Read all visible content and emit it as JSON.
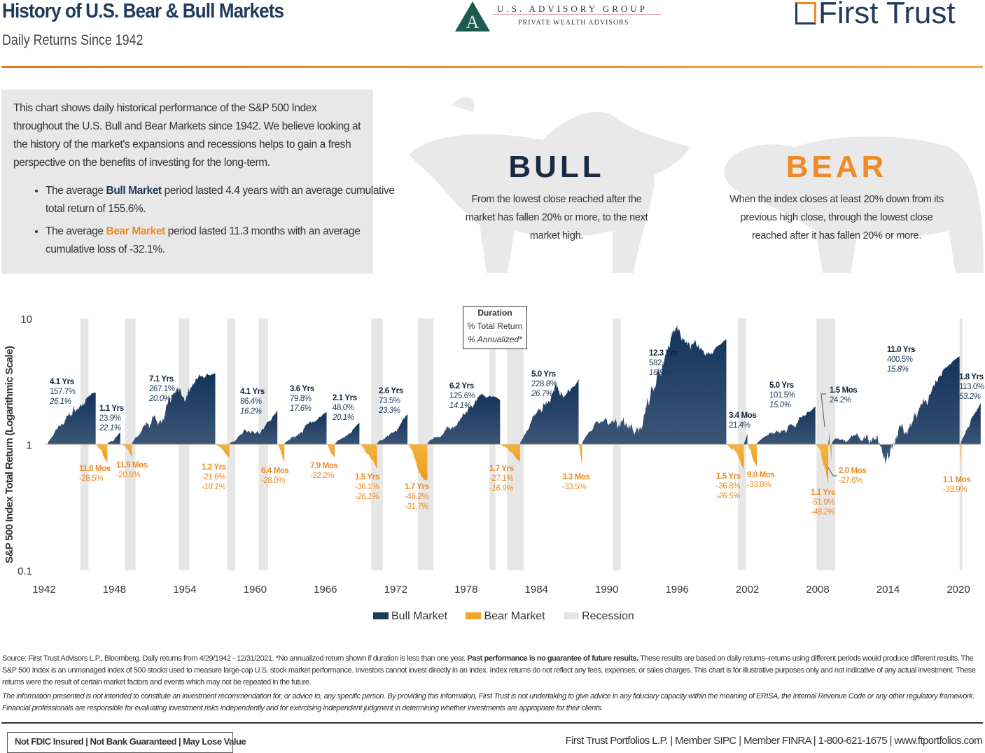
{
  "header": {
    "title": "History of U.S. Bear & Bull Markets",
    "subtitle": "Daily Returns Since 1942",
    "partner_logo": {
      "line1": "U.S. ADVISORY GROUP",
      "line2": "PRIVATE WEALTH ADVISORS",
      "monogram": "AG"
    },
    "brand_logo": "First Trust",
    "accent_color": "#f08a24",
    "navy_color": "#1f3a5c"
  },
  "intro": {
    "paragraph": "This chart shows daily historical performance of the S&P 500 Index throughout the U.S. Bull and Bear Markets since 1942. We believe looking at the history of the market's expansions and recessions helps to gain a fresh perspective on the benefits of investing for the long-term.",
    "bullet1": {
      "pre": "The average ",
      "em": "Bull Market",
      "post": " period lasted 4.4 years with an average cumulative total return of 155.6%."
    },
    "bullet2": {
      "pre": "The average ",
      "em": "Bear Market",
      "post": " period lasted 11.3 months with an average cumulative loss of -32.1%."
    }
  },
  "bull_panel": {
    "heading": "BULL",
    "description": "From the lowest close reached after the market has fallen 20% or more, to the next market high."
  },
  "bear_panel": {
    "heading": "BEAR",
    "description": "When the index closes at least 20% down from its previous high close, through the lowest close reached after it has fallen 20% or more."
  },
  "key_box": {
    "line1": "Duration",
    "line2": "% Total Return",
    "line3": "% Annualized*"
  },
  "chart_data": {
    "type": "area",
    "ylabel": "S&P 500 Index Total Return (Logarithmic Scale)",
    "yscale": "log",
    "ylim": [
      0.1,
      10
    ],
    "yticks": [
      "10",
      "1",
      "0.1"
    ],
    "xlim": [
      1942,
      2022
    ],
    "xticks": [
      "1942",
      "1948",
      "1954",
      "1960",
      "1966",
      "1972",
      "1978",
      "1984",
      "1990",
      "1996",
      "2002",
      "2008",
      "2014",
      "2020"
    ],
    "colors": {
      "bull": "#1f3a5c",
      "bear": "#f2a52e",
      "recession": "#e6e6e6",
      "bear_label": "#f08a24"
    },
    "legend": [
      {
        "name": "Bull Market",
        "color": "#1f3a5c"
      },
      {
        "name": "Bear Market",
        "color": "#f2a52e"
      },
      {
        "name": "Recession",
        "color": "#e6e6e6"
      }
    ],
    "recessions": [
      [
        1945.1,
        1945.8
      ],
      [
        1948.9,
        1949.8
      ],
      [
        1953.5,
        1954.4
      ],
      [
        1957.6,
        1958.3
      ],
      [
        1960.3,
        1961.1
      ],
      [
        1969.9,
        1970.9
      ],
      [
        1973.9,
        1975.2
      ],
      [
        1980.0,
        1980.5
      ],
      [
        1981.5,
        1982.9
      ],
      [
        1990.5,
        1991.2
      ],
      [
        2001.2,
        2001.9
      ],
      [
        2007.9,
        2009.5
      ],
      [
        2020.1,
        2020.3
      ]
    ],
    "segments": [
      {
        "type": "bull",
        "start": 1942.3,
        "end": 1946.4,
        "end_value": 2.577,
        "duration": "4.1 Yrs",
        "total": "157.7%",
        "annualized": "26.1%"
      },
      {
        "type": "bear",
        "start": 1946.4,
        "end": 1947.4,
        "end_value": 0.715,
        "duration": "11.6 Mos",
        "total": "-28.5%",
        "annualized": ""
      },
      {
        "type": "bull",
        "start": 1947.4,
        "end": 1948.5,
        "end_value": 1.239,
        "duration": "1.1 Yrs",
        "total": "23.9%",
        "annualized": "22.1%"
      },
      {
        "type": "bear",
        "start": 1948.5,
        "end": 1949.5,
        "end_value": 0.794,
        "duration": "11.9 Mos",
        "total": "-20.6%",
        "annualized": ""
      },
      {
        "type": "bull",
        "start": 1949.5,
        "end": 1956.6,
        "end_value": 3.671,
        "duration": "7.1 Yrs",
        "total": "267.1%",
        "annualized": "20.0%"
      },
      {
        "type": "bear",
        "start": 1956.6,
        "end": 1957.8,
        "end_value": 0.784,
        "duration": "1.2 Yrs",
        "total": "-21.6%",
        "annualized": "-18.1%"
      },
      {
        "type": "bull",
        "start": 1957.8,
        "end": 1961.9,
        "end_value": 1.864,
        "duration": "4.1 Yrs",
        "total": "86.4%",
        "annualized": "16.2%"
      },
      {
        "type": "bear",
        "start": 1961.9,
        "end": 1962.5,
        "end_value": 0.72,
        "duration": "6.4 Mos",
        "total": "-28.0%",
        "annualized": ""
      },
      {
        "type": "bull",
        "start": 1962.5,
        "end": 1966.1,
        "end_value": 1.798,
        "duration": "3.6 Yrs",
        "total": "79.8%",
        "annualized": "17.6%"
      },
      {
        "type": "bear",
        "start": 1966.1,
        "end": 1966.8,
        "end_value": 0.778,
        "duration": "7.9 Mos",
        "total": "-22.2%",
        "annualized": ""
      },
      {
        "type": "bull",
        "start": 1966.8,
        "end": 1968.9,
        "end_value": 1.48,
        "duration": "2.1 Yrs",
        "total": "48.0%",
        "annualized": "20.1%"
      },
      {
        "type": "bear",
        "start": 1968.9,
        "end": 1970.4,
        "end_value": 0.639,
        "duration": "1.5 Yrs",
        "total": "-36.1%",
        "annualized": "-26.1%"
      },
      {
        "type": "bull",
        "start": 1970.4,
        "end": 1973.0,
        "end_value": 1.735,
        "duration": "2.6 Yrs",
        "total": "73.5%",
        "annualized": "23.3%"
      },
      {
        "type": "bear",
        "start": 1973.0,
        "end": 1974.7,
        "end_value": 0.518,
        "duration": "1.7 Yrs",
        "total": "-48.2%",
        "annualized": "-31.7%"
      },
      {
        "type": "bull",
        "start": 1974.7,
        "end": 1980.9,
        "end_value": 2.256,
        "duration": "6.2 Yrs",
        "total": "125.6%",
        "annualized": "14.1%"
      },
      {
        "type": "bear",
        "start": 1980.9,
        "end": 1982.6,
        "end_value": 0.729,
        "duration": "1.7 Yrs",
        "total": "-27.1%",
        "annualized": "-16.9%"
      },
      {
        "type": "bull",
        "start": 1982.6,
        "end": 1987.6,
        "end_value": 3.288,
        "duration": "5.0 Yrs",
        "total": "228.8%",
        "annualized": "26.7%"
      },
      {
        "type": "bear",
        "start": 1987.6,
        "end": 1987.9,
        "end_value": 0.665,
        "duration": "3.3 Mos",
        "total": "-33.5%",
        "annualized": ""
      },
      {
        "type": "bull",
        "start": 1987.9,
        "end": 2000.2,
        "end_value": 6.821,
        "duration": "12.3 Yrs",
        "total": "582.1%",
        "annualized": "16.9%"
      },
      {
        "type": "bear",
        "start": 2000.2,
        "end": 2001.7,
        "end_value": 0.632,
        "duration": "1.5 Yrs",
        "total": "-36.8%",
        "annualized": "-26.5%"
      },
      {
        "type": "bull",
        "start": 2001.7,
        "end": 2002.0,
        "end_value": 1.214,
        "duration": "3.4 Mos",
        "total": "21.4%",
        "annualized": ""
      },
      {
        "type": "bear",
        "start": 2002.0,
        "end": 2002.8,
        "end_value": 0.662,
        "duration": "9.0 Mos",
        "total": "-33.8%",
        "annualized": ""
      },
      {
        "type": "bull",
        "start": 2002.8,
        "end": 2007.8,
        "end_value": 2.015,
        "duration": "5.0 Yrs",
        "total": "101.5%",
        "annualized": "15.0%"
      },
      {
        "type": "bear",
        "start": 2007.8,
        "end": 2008.9,
        "end_value": 0.481,
        "duration": "1.1 Yrs",
        "total": "-51.9%",
        "annualized": "-48.2%"
      },
      {
        "type": "bull",
        "start": 2008.9,
        "end": 2009.0,
        "end_value": 1.242,
        "duration": "1.5 Mos",
        "total": "24.2%",
        "annualized": ""
      },
      {
        "type": "bear",
        "start": 2009.0,
        "end": 2009.2,
        "end_value": 0.724,
        "duration": "2.0 Mos",
        "total": "-27.6%",
        "annualized": ""
      },
      {
        "type": "bull",
        "start": 2009.2,
        "end": 2020.1,
        "end_value": 5.005,
        "duration": "11.0 Yrs",
        "total": "400.5%",
        "annualized": "15.8%"
      },
      {
        "type": "bear",
        "start": 2020.1,
        "end": 2020.2,
        "end_value": 0.661,
        "duration": "1.1 Mos",
        "total": "-33.9%",
        "annualized": ""
      },
      {
        "type": "bull",
        "start": 2020.2,
        "end": 2021.9,
        "end_value": 2.13,
        "duration": "1.8 Yrs",
        "total": "113.0%",
        "annualized": "53.2%"
      }
    ]
  },
  "footer": {
    "source_pre": "Source: First Trust Advisors L.P., Bloomberg. Daily returns from 4/29/1942 - 12/31/2021. *No annualized return shown if duration is less than one year. ",
    "source_bold": "Past performance is no guarantee of future results.",
    "source_post": " These results are based on daily returns–returns using different periods would produce different results. The S&P 500 Index is an unmanaged index of 500 stocks used to measure large-cap U.S. stock market performance. Investors cannot invest directly in an index. Index returns do not reflect any fees, expenses, or sales charges. This chart is for illustrative purposes only and not indicative of any actual investment. These returns were the result of certain market factors and events which may not be repeated in the future.",
    "disclaimer": "The information presented is not intended to constitute an investment recommendation for, or advice to, any specific person. By providing this information, First Trust is not undertaking to give advice in any fiduciary capacity within the meaning of ERISA, the Internal Revenue Code or any other regulatory framework. Financial professionals are responsible for evaluating investment risks independently and for exercising independent judgment in determining whether investments are appropriate for their clients.",
    "fdic": "Not FDIC Insured | Not Bank Guaranteed | May Lose Value",
    "contact": "First Trust Portfolios L.P. | Member SIPC | Member FINRA | 1-800-621-1675 | www.ftportfolios.com"
  }
}
